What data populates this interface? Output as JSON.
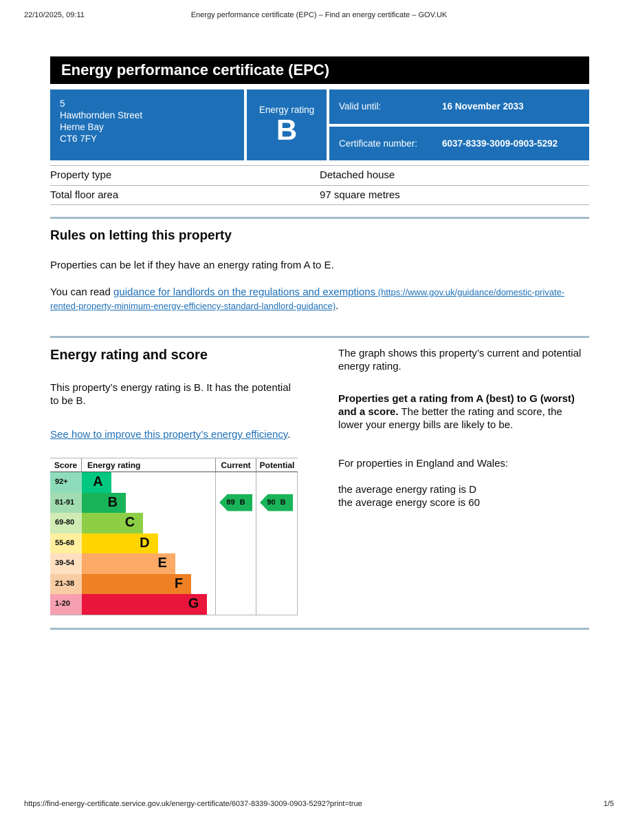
{
  "colors": {
    "brand_blue": "#1d70b8",
    "link": "#1d70b8",
    "divider": "#a2bccb",
    "banner_bg": "#000000"
  },
  "print_header": {
    "datetime": "22/10/2025, 09:11",
    "title": "Energy performance certificate (EPC) – Find an energy certificate – GOV.UK"
  },
  "print_footer": {
    "url": "https://find-energy-certificate.service.gov.uk/energy-certificate/6037-8339-3009-0903-5292?print=true",
    "page_number": "1/5"
  },
  "banner": {
    "title": "Energy performance certificate (EPC)"
  },
  "summary": {
    "panel_color": "#1d70b8",
    "address_lines": [
      "5",
      "Hawthornden Street",
      "Herne Bay",
      "CT6 7FY"
    ],
    "energy_rating_label": "Energy rating",
    "energy_rating": "B",
    "valid_until_label": "Valid until:",
    "valid_until": "16 November 2033",
    "certificate_number_label": "Certificate number:",
    "certificate_number": "6037-8339-3009-0903-5292"
  },
  "property_table": {
    "rows": [
      {
        "label": "Property type",
        "value": "Detached house"
      },
      {
        "label": "Total floor area",
        "value": "97 square metres"
      }
    ]
  },
  "rules_section": {
    "heading": "Rules on letting this property",
    "paragraph1": "Properties can be let if they have an energy rating from A to E.",
    "paragraph2_prefix": "You can read ",
    "link_text": "guidance for landlords on the regulations and exemptions",
    "link_url_text": " (https://www.gov.uk/guidance/domestic-private-rented-property-minimum-energy-efficiency-standard-landlord-guidance)",
    "paragraph2_suffix": "."
  },
  "rating_section": {
    "heading": "Energy rating and score",
    "intro": "This property’s energy rating is B. It has the potential to be B.",
    "improve_link": "See how to improve this property’s energy efficiency",
    "improve_suffix": ".",
    "right": {
      "para1": "The graph shows this property’s current and potential energy rating.",
      "para2_bold": "Properties get a rating from A (best) to G (worst) and a score.",
      "para2_rest": " The better the rating and score, the lower your energy bills are likely to be.",
      "para3": "For properties in England and Wales:",
      "line1": "the average energy rating is D",
      "line2": "the average energy score is 60"
    }
  },
  "chart": {
    "headers": {
      "score": "Score",
      "rating": "Energy rating",
      "current": "Current",
      "potential": "Potential"
    },
    "bands": [
      {
        "score": "92+",
        "letter": "A",
        "color": "#00c781",
        "tint": "#8fdcbb",
        "width_pct": 22
      },
      {
        "score": "81-91",
        "letter": "B",
        "color": "#19b459",
        "tint": "#a2ddb1",
        "width_pct": 33
      },
      {
        "score": "69-80",
        "letter": "C",
        "color": "#8dce46",
        "tint": "#d1ebb4",
        "width_pct": 46
      },
      {
        "score": "55-68",
        "letter": "D",
        "color": "#ffd500",
        "tint": "#ffef9f",
        "width_pct": 57
      },
      {
        "score": "39-54",
        "letter": "E",
        "color": "#fcaa65",
        "tint": "#fee0c0",
        "width_pct": 70
      },
      {
        "score": "21-38",
        "letter": "F",
        "color": "#ef8023",
        "tint": "#f8cda4",
        "width_pct": 82
      },
      {
        "score": "1-20",
        "letter": "G",
        "color": "#e9153b",
        "tint": "#f69fb1",
        "width_pct": 94
      }
    ],
    "current": {
      "score": "89",
      "letter": "B",
      "band_index": 1,
      "color": "#19b459"
    },
    "potential": {
      "score": "90",
      "letter": "B",
      "band_index": 1,
      "color": "#19b459"
    }
  },
  "chart_data": {
    "type": "bar",
    "title": "EPC energy rating and score",
    "categories": [
      "A",
      "B",
      "C",
      "D",
      "E",
      "F",
      "G"
    ],
    "score_ranges": [
      "92+",
      "81-91",
      "69-80",
      "55-68",
      "39-54",
      "21-38",
      "1-20"
    ],
    "bar_width_pct": [
      22,
      33,
      46,
      57,
      70,
      82,
      94
    ],
    "columns": [
      "Score",
      "Energy rating",
      "Current",
      "Potential"
    ],
    "current": {
      "score": 89,
      "rating": "B"
    },
    "potential": {
      "score": 90,
      "rating": "B"
    }
  }
}
